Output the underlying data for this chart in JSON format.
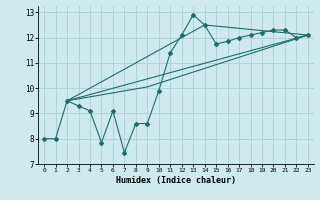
{
  "xlabel": "Humidex (Indice chaleur)",
  "bg_color": "#ceeaed",
  "grid_color": "#afd4d8",
  "line_color": "#1e6e68",
  "xlim": [
    -0.5,
    23.5
  ],
  "ylim": [
    7,
    13.25
  ],
  "yticks": [
    7,
    8,
    9,
    10,
    11,
    12,
    13
  ],
  "xticks": [
    0,
    1,
    2,
    3,
    4,
    5,
    6,
    7,
    8,
    9,
    10,
    11,
    12,
    13,
    14,
    15,
    16,
    17,
    18,
    19,
    20,
    21,
    22,
    23
  ],
  "main_x": [
    0,
    1,
    2,
    3,
    4,
    5,
    6,
    7,
    8,
    9,
    10,
    11,
    12,
    13,
    14,
    15,
    16,
    17,
    18,
    19,
    20,
    21,
    22,
    23
  ],
  "main_y": [
    8.0,
    8.0,
    9.5,
    9.3,
    9.1,
    7.85,
    9.1,
    7.45,
    8.6,
    8.6,
    9.9,
    11.4,
    12.1,
    12.9,
    12.5,
    11.75,
    11.85,
    12.0,
    12.1,
    12.2,
    12.3,
    12.3,
    12.0,
    12.1
  ],
  "trend1_x": [
    2,
    23
  ],
  "trend1_y": [
    9.5,
    12.1
  ],
  "trend2_x": [
    2,
    9,
    23
  ],
  "trend2_y": [
    9.5,
    10.05,
    12.1
  ],
  "trend3_x": [
    2,
    14,
    23
  ],
  "trend3_y": [
    9.5,
    12.5,
    12.1
  ]
}
